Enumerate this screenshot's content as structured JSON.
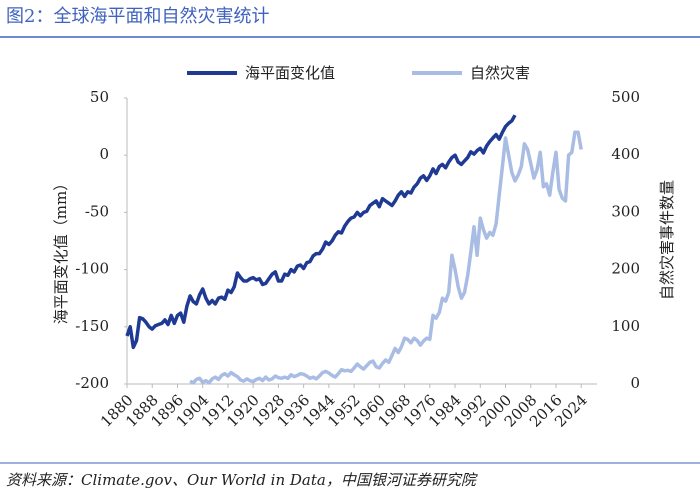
{
  "chart_data": {
    "type": "line",
    "title": "图2：全球海平面和自然灾害统计",
    "source": "资料来源：Climate.gov、Our World in Data，中国银河证券研究院",
    "y_label": "海平面变化值（mm）",
    "y2_label": "自然灾害事件数量",
    "xlim": [
      1880,
      2029
    ],
    "xticks": [
      1880,
      1888,
      1896,
      1904,
      1912,
      1920,
      1928,
      1936,
      1944,
      1952,
      1960,
      1968,
      1976,
      1984,
      1992,
      2000,
      2008,
      2016,
      2024
    ],
    "ylim": [
      -200,
      50
    ],
    "yticks": [
      -200,
      -150,
      -100,
      -50,
      0,
      50
    ],
    "y2lim": [
      0,
      500
    ],
    "y2ticks": [
      0,
      100,
      200,
      300,
      400,
      500
    ],
    "legend": "top",
    "series": [
      {
        "name": "海平面变化值",
        "color": "#1f3a93",
        "axis": "y",
        "x": [
          1880,
          1881,
          1882,
          1883,
          1884,
          1885,
          1886,
          1887,
          1888,
          1889,
          1890,
          1891,
          1892,
          1893,
          1894,
          1895,
          1896,
          1897,
          1898,
          1899,
          1900,
          1901,
          1902,
          1903,
          1904,
          1905,
          1906,
          1907,
          1908,
          1909,
          1910,
          1911,
          1912,
          1913,
          1914,
          1915,
          1916,
          1917,
          1918,
          1919,
          1920,
          1921,
          1922,
          1923,
          1924,
          1925,
          1926,
          1927,
          1928,
          1929,
          1930,
          1931,
          1932,
          1933,
          1934,
          1935,
          1936,
          1937,
          1938,
          1939,
          1940,
          1941,
          1942,
          1943,
          1944,
          1945,
          1946,
          1947,
          1948,
          1949,
          1950,
          1951,
          1952,
          1953,
          1954,
          1955,
          1956,
          1957,
          1958,
          1959,
          1960,
          1961,
          1962,
          1963,
          1964,
          1965,
          1966,
          1967,
          1968,
          1969,
          1970,
          1971,
          1972,
          1973,
          1974,
          1975,
          1976,
          1977,
          1978,
          1979,
          1980,
          1981,
          1982,
          1983,
          1984,
          1985,
          1986,
          1987,
          1988,
          1989,
          1990,
          1991,
          1992,
          1993,
          1994,
          1995,
          1996,
          1997,
          1998,
          1999,
          2000,
          2001,
          2002,
          2003
        ],
        "values": [
          -158,
          -150,
          -168,
          -162,
          -142,
          -143,
          -146,
          -150,
          -152,
          -149,
          -148,
          -147,
          -144,
          -148,
          -140,
          -147,
          -140,
          -138,
          -146,
          -132,
          -123,
          -128,
          -130,
          -122,
          -117,
          -125,
          -130,
          -127,
          -130,
          -125,
          -124,
          -126,
          -118,
          -120,
          -115,
          -103,
          -107,
          -110,
          -110,
          -108,
          -107,
          -109,
          -108,
          -113,
          -112,
          -108,
          -104,
          -102,
          -110,
          -110,
          -104,
          -105,
          -100,
          -102,
          -97,
          -96,
          -99,
          -94,
          -93,
          -88,
          -86,
          -86,
          -82,
          -76,
          -78,
          -75,
          -70,
          -67,
          -68,
          -62,
          -58,
          -55,
          -54,
          -50,
          -53,
          -50,
          -49,
          -44,
          -42,
          -40,
          -45,
          -38,
          -40,
          -42,
          -44,
          -40,
          -35,
          -32,
          -36,
          -32,
          -33,
          -28,
          -25,
          -20,
          -18,
          -22,
          -18,
          -12,
          -16,
          -10,
          -8,
          -11,
          -6,
          -2,
          0,
          -6,
          -8,
          -5,
          -2,
          3,
          1,
          4,
          6,
          2,
          8,
          12,
          15,
          18,
          14,
          20,
          25,
          28,
          30,
          35
        ]
      },
      {
        "name": "自然灾害",
        "color": "#a9bce4",
        "axis": "y2",
        "x": [
          1900,
          1901,
          1902,
          1903,
          1904,
          1905,
          1906,
          1907,
          1908,
          1909,
          1910,
          1911,
          1912,
          1913,
          1914,
          1915,
          1916,
          1917,
          1918,
          1919,
          1920,
          1921,
          1922,
          1923,
          1924,
          1925,
          1926,
          1927,
          1928,
          1929,
          1930,
          1931,
          1932,
          1933,
          1934,
          1935,
          1936,
          1937,
          1938,
          1939,
          1940,
          1941,
          1942,
          1943,
          1944,
          1945,
          1946,
          1947,
          1948,
          1949,
          1950,
          1951,
          1952,
          1953,
          1954,
          1955,
          1956,
          1957,
          1958,
          1959,
          1960,
          1961,
          1962,
          1963,
          1964,
          1965,
          1966,
          1967,
          1968,
          1969,
          1970,
          1971,
          1972,
          1973,
          1974,
          1975,
          1976,
          1977,
          1978,
          1979,
          1980,
          1981,
          1982,
          1983,
          1984,
          1985,
          1986,
          1987,
          1988,
          1989,
          1990,
          1991,
          1992,
          1993,
          1994,
          1995,
          1996,
          1997,
          1998,
          1999,
          2000,
          2001,
          2002,
          2003,
          2004,
          2005,
          2006,
          2007,
          2008,
          2009,
          2010,
          2011,
          2012,
          2013,
          2014,
          2015,
          2016,
          2017,
          2018,
          2019,
          2020,
          2021,
          2022,
          2023,
          2024
        ],
        "values": [
          5,
          2,
          8,
          10,
          3,
          6,
          2,
          9,
          12,
          8,
          15,
          18,
          14,
          20,
          16,
          13,
          7,
          5,
          9,
          6,
          4,
          8,
          10,
          6,
          12,
          7,
          9,
          14,
          11,
          10,
          12,
          10,
          16,
          13,
          15,
          18,
          17,
          14,
          10,
          12,
          9,
          14,
          20,
          22,
          19,
          15,
          12,
          18,
          25,
          23,
          24,
          22,
          28,
          35,
          30,
          26,
          32,
          38,
          40,
          30,
          28,
          36,
          42,
          38,
          50,
          62,
          55,
          65,
          80,
          78,
          72,
          80,
          76,
          68,
          75,
          80,
          78,
          120,
          115,
          125,
          150,
          145,
          160,
          225,
          200,
          170,
          150,
          160,
          190,
          230,
          275,
          225,
          290,
          270,
          255,
          265,
          260,
          280,
          330,
          380,
          430,
          400,
          370,
          355,
          365,
          380,
          420,
          410,
          385,
          360,
          375,
          405,
          345,
          350,
          330,
          370,
          405,
          340,
          325,
          320,
          400,
          405,
          440,
          440,
          410
        ]
      }
    ]
  }
}
